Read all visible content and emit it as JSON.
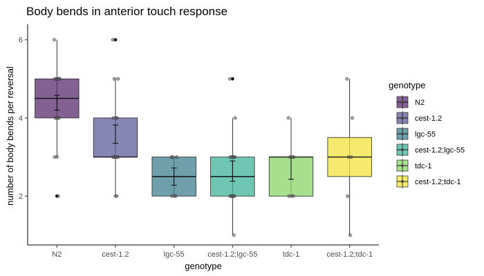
{
  "chart_data": {
    "type": "box",
    "title": "Body bends in anterior touch response",
    "xlabel": "genotype",
    "ylabel": "number of body bends per reversal",
    "categories": [
      "N2",
      "cest-1.2",
      "lgc-55",
      "cest-1.2;lgc-55",
      "tdc-1",
      "cest-1.2;tdc-1"
    ],
    "ylim": [
      0.75,
      6.4
    ],
    "yticks": [
      2,
      4,
      6
    ],
    "grid": false,
    "legend": {
      "title": "genotype",
      "position": "right",
      "entries": [
        "N2",
        "cest-1.2",
        "lgc-55",
        "cest-1.2;lgc-55",
        "tdc-1",
        "cest-1.2;tdc-1"
      ]
    },
    "colors": [
      "#5b2c6f",
      "#5e5e99",
      "#3f7f8f",
      "#3fb39a",
      "#89d46a",
      "#f2e33d"
    ],
    "series": [
      {
        "name": "N2",
        "box": {
          "whisker_low": 3,
          "q1": 4,
          "median": 4.5,
          "q3": 5,
          "whisker_high": 6
        },
        "mean": 4.4,
        "error": [
          4.2,
          4.58
        ],
        "outliers": [
          2
        ],
        "points": [
          6,
          5,
          5,
          5,
          5,
          5,
          5,
          4,
          4,
          4,
          4,
          3,
          3,
          2
        ]
      },
      {
        "name": "cest-1.2",
        "box": {
          "whisker_low": 2,
          "q1": 3,
          "median": 3,
          "q3": 4,
          "whisker_high": 5
        },
        "mean": 3.58,
        "error": [
          3.35,
          3.82
        ],
        "outliers": [
          6
        ],
        "points": [
          6,
          5,
          5,
          4,
          4,
          4,
          3,
          3,
          3,
          3,
          3,
          3,
          2,
          2
        ]
      },
      {
        "name": "lgc-55",
        "box": {
          "whisker_low": 2,
          "q1": 2,
          "median": 2.5,
          "q3": 3,
          "whisker_high": 3
        },
        "mean": 2.5,
        "error": [
          2.28,
          2.72
        ],
        "outliers": [],
        "points": [
          3,
          3,
          3,
          2,
          2,
          2
        ]
      },
      {
        "name": "cest-1.2;lgc-55",
        "box": {
          "whisker_low": 1,
          "q1": 2,
          "median": 2.5,
          "q3": 3,
          "whisker_high": 4
        },
        "mean": 2.62,
        "error": [
          2.38,
          2.9
        ],
        "outliers": [
          5
        ],
        "points": [
          5,
          4,
          3,
          3,
          3,
          3,
          3,
          2,
          2,
          2,
          2,
          2,
          2,
          1
        ]
      },
      {
        "name": "tdc-1",
        "box": {
          "whisker_low": 2,
          "q1": 2,
          "median": 3,
          "q3": 3,
          "whisker_high": 4
        },
        "mean": 2.72,
        "error": [
          2.43,
          3.0
        ],
        "outliers": [],
        "points": [
          4,
          3,
          3,
          3,
          2,
          2,
          2
        ]
      },
      {
        "name": "cest-1.2;tdc-1",
        "box": {
          "whisker_low": 1,
          "q1": 2.5,
          "median": 3,
          "q3": 3.5,
          "whisker_high": 5
        },
        "mean": 3.0,
        "error": null,
        "outliers": [],
        "points": [
          5,
          4,
          3,
          3,
          2,
          1
        ]
      }
    ]
  }
}
